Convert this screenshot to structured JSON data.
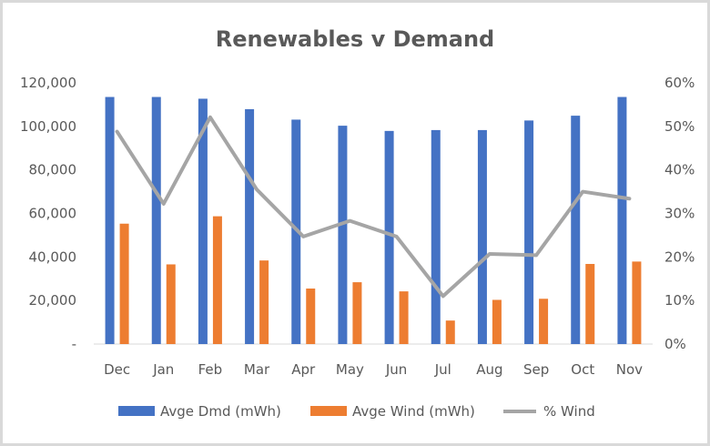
{
  "chart_data": {
    "type": "bar",
    "title": "Renewables v Demand",
    "xlabel": "",
    "ylabel": "",
    "categories": [
      "Dec",
      "Jan",
      "Feb",
      "Mar",
      "Apr",
      "May",
      "Jun",
      "Jul",
      "Aug",
      "Sep",
      "Oct",
      "Nov"
    ],
    "ylim": [
      0,
      120000
    ],
    "y2lim": [
      0,
      0.6
    ],
    "y_ticks": [
      "-",
      "20,000",
      "40,000",
      "60,000",
      "80,000",
      "100,000",
      "120,000"
    ],
    "y2_ticks": [
      "0%",
      "10%",
      "20%",
      "30%",
      "40%",
      "50%",
      "60%"
    ],
    "series": [
      {
        "name": "Avge Dmd (mWh)",
        "type": "bar",
        "axis": "left",
        "color": "#4472c4",
        "values": [
          113500,
          113500,
          112700,
          107900,
          103100,
          100300,
          97900,
          98300,
          98300,
          102700,
          104900,
          113500
        ]
      },
      {
        "name": "Avge Wind (mWh)",
        "type": "bar",
        "axis": "left",
        "color": "#ed7d31",
        "values": [
          55300,
          36600,
          58700,
          38400,
          25500,
          28400,
          24200,
          10800,
          20300,
          20800,
          36800,
          37900
        ]
      },
      {
        "name": "% Wind",
        "type": "line",
        "axis": "right",
        "color": "#a5a5a5",
        "values": [
          0.488,
          0.322,
          0.521,
          0.355,
          0.247,
          0.283,
          0.247,
          0.11,
          0.207,
          0.204,
          0.35,
          0.334
        ]
      }
    ],
    "grid": false,
    "legend": "bottom"
  }
}
